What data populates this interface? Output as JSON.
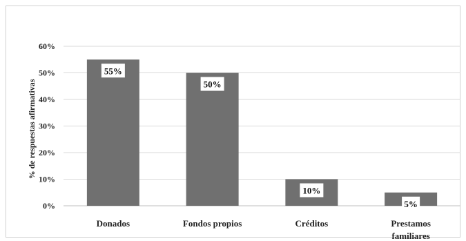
{
  "chart_data": {
    "type": "bar",
    "categories": [
      "Donados",
      "Fondos propios",
      "Créditos",
      "Prestamos familiares"
    ],
    "category_lines": [
      [
        "Donados"
      ],
      [
        "Fondos propios"
      ],
      [
        "Créditos"
      ],
      [
        "Prestamos",
        "familiares"
      ]
    ],
    "values": [
      55,
      50,
      10,
      5
    ],
    "data_labels": [
      "55%",
      "50%",
      "10%",
      "5%"
    ],
    "title": "",
    "xlabel": "",
    "ylabel": "% de respuestas afirmativas",
    "ylim": [
      0,
      60
    ],
    "yticks": [
      0,
      10,
      20,
      30,
      40,
      50,
      60
    ],
    "ytick_labels": [
      "0%",
      "10%",
      "20%",
      "30%",
      "40%",
      "50%",
      "60%"
    ],
    "grid": true,
    "legend": "none",
    "bar_color": "#707070",
    "grid_color": "#d9d9d9"
  }
}
